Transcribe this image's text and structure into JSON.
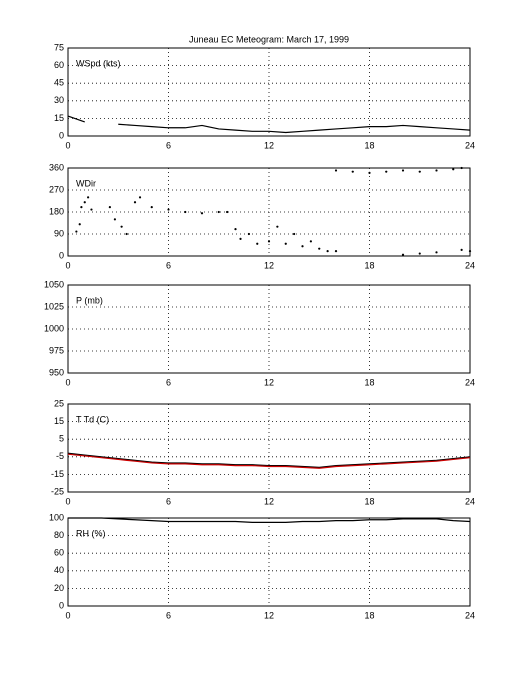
{
  "chart_data": [
    {
      "type": "line",
      "title": "Juneau EC Meteogram:     March 17, 1999",
      "label": "WSpd (kts)",
      "x": [
        0,
        1,
        2,
        3,
        4,
        5,
        6,
        7,
        8,
        9,
        10,
        11,
        12,
        13,
        14,
        15,
        16,
        17,
        18,
        19,
        20,
        21,
        22,
        23,
        24
      ],
      "series": [
        {
          "color": "#000000",
          "values": [
            17,
            12,
            null,
            10,
            9,
            8,
            7,
            7,
            9,
            6,
            5,
            4,
            4,
            3,
            4,
            5,
            6,
            7,
            8,
            8,
            9,
            8,
            7,
            6,
            5
          ]
        }
      ],
      "xlim": [
        0,
        24
      ],
      "xticks": [
        0,
        6,
        12,
        18,
        24
      ],
      "ylim": [
        0,
        75
      ],
      "yticks": [
        0,
        15,
        30,
        45,
        60,
        75
      ],
      "grid": true
    },
    {
      "type": "scatter",
      "label": "WDir",
      "x": [
        0.5,
        0.7,
        0.8,
        1,
        1.2,
        1.4,
        2.5,
        2.8,
        3.2,
        3.5,
        4,
        4.3,
        5,
        6,
        7,
        8,
        9,
        9.5,
        10,
        10.3,
        10.8,
        11.3,
        12,
        12.5,
        13,
        13.5,
        14,
        14.5,
        15,
        15.5,
        16,
        16,
        17,
        18,
        19,
        20,
        21,
        22,
        23,
        23.5,
        20,
        21,
        22,
        23.5,
        24
      ],
      "values": [
        100,
        130,
        200,
        220,
        240,
        190,
        200,
        150,
        120,
        90,
        220,
        240,
        200,
        190,
        180,
        175,
        180,
        180,
        110,
        70,
        90,
        50,
        60,
        120,
        50,
        90,
        40,
        60,
        30,
        20,
        20,
        350,
        345,
        340,
        345,
        350,
        345,
        350,
        355,
        360,
        5,
        10,
        15,
        25,
        20
      ],
      "color": "#000000",
      "xlim": [
        0,
        24
      ],
      "xticks": [
        0,
        6,
        12,
        18,
        24
      ],
      "ylim": [
        0,
        360
      ],
      "yticks": [
        0,
        90,
        180,
        270,
        360
      ],
      "grid": true
    },
    {
      "type": "line",
      "label": "P (mb)",
      "xlim": [
        0,
        24
      ],
      "xticks": [
        0,
        6,
        12,
        18,
        24
      ],
      "ylim": [
        950,
        1050
      ],
      "yticks": [
        950,
        975,
        1000,
        1025,
        1050
      ],
      "grid": true
    },
    {
      "type": "line",
      "label": "T Td (C)",
      "x": [
        0,
        1,
        2,
        3,
        4,
        5,
        6,
        7,
        8,
        9,
        10,
        11,
        12,
        13,
        14,
        15,
        16,
        17,
        18,
        19,
        20,
        21,
        22,
        23,
        24
      ],
      "series": [
        {
          "color": "#000000",
          "values": [
            -3,
            -4,
            -5,
            -6,
            -7,
            -8,
            -8.5,
            -8.5,
            -9,
            -9,
            -9.5,
            -9.5,
            -10,
            -10,
            -10.5,
            -11,
            -10,
            -9.5,
            -9,
            -8.5,
            -8,
            -7.5,
            -7,
            -6,
            -5
          ]
        },
        {
          "color": "#cc0000",
          "values": [
            -3.5,
            -4.5,
            -5.5,
            -6.5,
            -7.5,
            -8.5,
            -9,
            -9,
            -9.5,
            -9.5,
            -10,
            -10,
            -10.5,
            -10.5,
            -11,
            -11.5,
            -10.5,
            -10,
            -9.5,
            -9,
            -8.5,
            -8,
            -7.5,
            -6.5,
            -5.5
          ]
        }
      ],
      "xlim": [
        0,
        24
      ],
      "xticks": [
        0,
        6,
        12,
        18,
        24
      ],
      "ylim": [
        -25,
        25
      ],
      "yticks": [
        -25,
        -15,
        -5,
        5,
        15,
        25
      ],
      "grid": true
    },
    {
      "type": "line",
      "label": "RH (%)",
      "x": [
        0,
        1,
        2,
        3,
        4,
        5,
        6,
        7,
        8,
        9,
        10,
        11,
        12,
        13,
        14,
        15,
        16,
        17,
        18,
        19,
        20,
        21,
        22,
        23,
        24
      ],
      "series": [
        {
          "color": "#000000",
          "values": [
            100,
            100,
            100,
            99,
            98,
            97,
            96,
            96,
            96,
            96,
            96,
            95,
            95,
            95,
            96,
            96,
            97,
            97,
            98,
            98,
            99,
            99,
            99,
            97,
            96
          ]
        }
      ],
      "xlim": [
        0,
        24
      ],
      "xticks": [
        0,
        6,
        12,
        18,
        24
      ],
      "ylim": [
        0,
        100
      ],
      "yticks": [
        0,
        20,
        40,
        60,
        80,
        100
      ],
      "grid": true
    }
  ]
}
